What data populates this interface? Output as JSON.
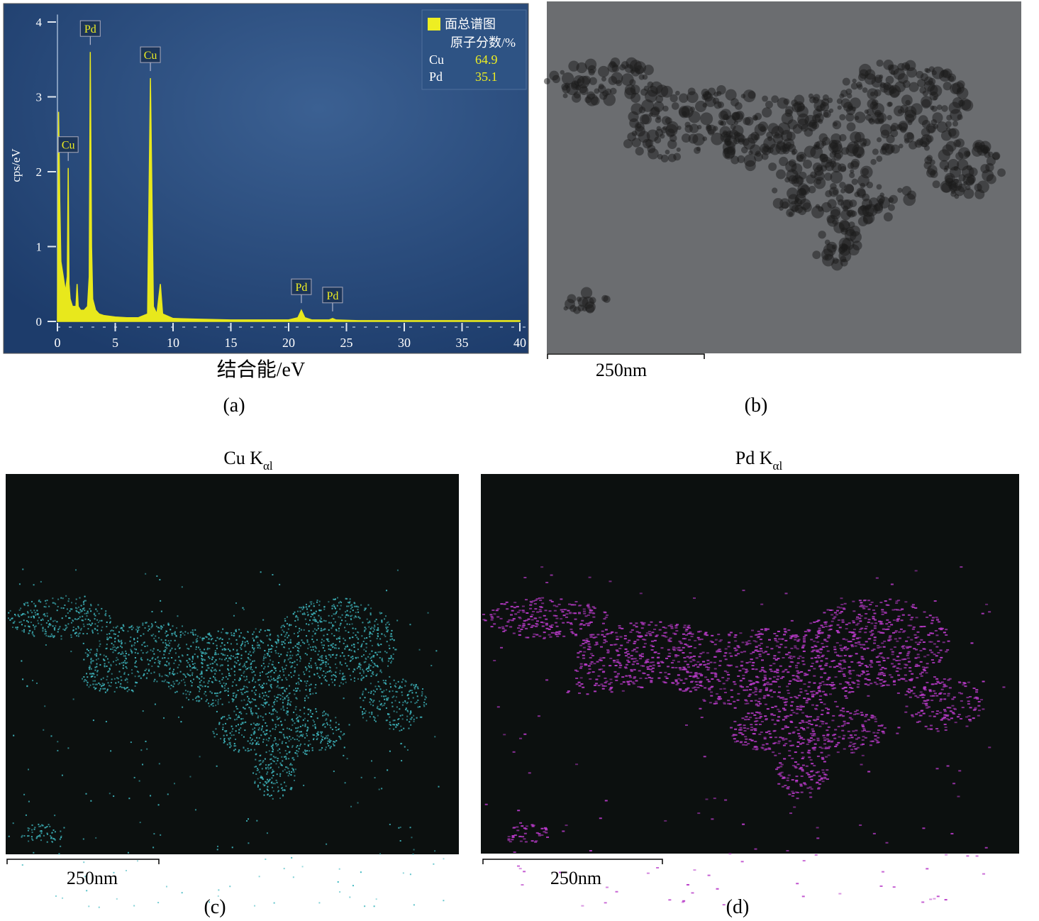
{
  "chart_data": {
    "type": "area",
    "x_label": "结合能/eV",
    "y_label": "cps/eV",
    "caption": "(a)",
    "x": [
      0,
      0.1,
      0.2,
      0.3,
      0.5,
      0.7,
      0.85,
      0.93,
      1.0,
      1.1,
      1.3,
      1.6,
      1.7,
      1.8,
      2.0,
      2.3,
      2.6,
      2.75,
      2.84,
      2.95,
      3.05,
      3.3,
      3.6,
      4,
      5,
      6,
      7,
      7.8,
      8.04,
      8.3,
      8.6,
      8.9,
      9.1,
      10,
      12,
      15,
      20,
      20.8,
      21.1,
      21.4,
      22,
      23.5,
      23.8,
      24.1,
      26,
      30,
      35,
      40
    ],
    "values": [
      0,
      2.8,
      1.6,
      0.8,
      0.6,
      0.4,
      0.6,
      2.05,
      0.5,
      0.3,
      0.2,
      0.2,
      0.5,
      0.2,
      0.15,
      0.15,
      0.2,
      0.6,
      3.6,
      1.0,
      0.3,
      0.15,
      0.1,
      0.08,
      0.06,
      0.05,
      0.05,
      0.1,
      3.25,
      0.2,
      0.1,
      0.5,
      0.1,
      0.04,
      0.03,
      0.02,
      0.02,
      0.05,
      0.15,
      0.05,
      0.02,
      0.02,
      0.04,
      0.02,
      0.01,
      0.01,
      0.01,
      0.01
    ],
    "color": "#e8e81c",
    "xlim": [
      0,
      40.5
    ],
    "ylim": [
      0,
      4.1
    ],
    "xticks": [
      0,
      5,
      10,
      15,
      20,
      25,
      30,
      35,
      40
    ],
    "yticks": [
      0,
      1,
      2,
      3,
      4
    ],
    "annotations": [
      {
        "text": "Cu",
        "x": 0.93,
        "y": 2.05
      },
      {
        "text": "Pd",
        "x": 2.84,
        "y": 3.6
      },
      {
        "text": "Cu",
        "x": 8.04,
        "y": 3.25
      },
      {
        "text": "Pd",
        "x": 21.1,
        "y": 0.15
      },
      {
        "text": "Pd",
        "x": 23.8,
        "y": 0.04
      }
    ],
    "legend": {
      "title": "面总谱图",
      "header": "原子分数/%",
      "rows": [
        {
          "element": "Cu",
          "value": 64.9
        },
        {
          "element": "Pd",
          "value": 35.1
        }
      ]
    }
  },
  "panels": [
    {
      "caption": "(b)",
      "scale_bar": "250nm"
    },
    {
      "title": "Cu K",
      "title_subscript": "αl",
      "scale_bar": "250nm",
      "caption": "(c)"
    },
    {
      "title": "Pd K",
      "title_subscript": "αl",
      "scale_bar": "250nm",
      "caption": "(d)"
    }
  ]
}
